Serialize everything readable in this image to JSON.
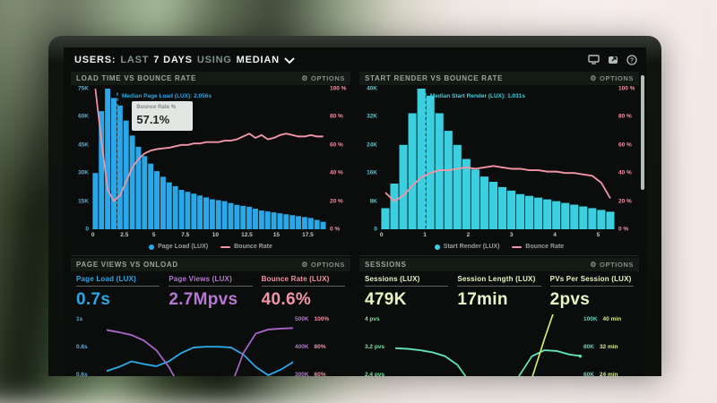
{
  "icons": {
    "gear": "⚙"
  },
  "labels": {
    "options": "OPTIONS"
  },
  "header": {
    "segments": [
      {
        "text": "USERS:",
        "style": "strong"
      },
      {
        "text": "LAST",
        "style": "muted"
      },
      {
        "text": "7 DAYS",
        "style": "strong"
      },
      {
        "text": "USING",
        "style": "muted"
      },
      {
        "text": "MEDIAN",
        "style": "strong"
      }
    ]
  },
  "chart_data": [
    {
      "type": "bar-line",
      "title": "LOAD TIME VS BOUNCE RATE",
      "x_ticks": [
        0,
        2.5,
        5,
        7.5,
        10,
        12.5,
        15,
        17.5
      ],
      "xlim": [
        0,
        19.2
      ],
      "y_left": {
        "ticks": [
          "75K",
          "60K",
          "45K",
          "30K",
          "15K",
          "0"
        ],
        "max_k": 75
      },
      "y_right": {
        "ticks": [
          "100 %",
          "80 %",
          "60 %",
          "40 %",
          "20 %",
          "0 %"
        ],
        "max": 100
      },
      "bars_k": [
        30,
        63,
        75,
        70,
        66,
        58,
        50,
        44,
        39,
        35,
        31,
        28,
        25,
        23,
        21,
        20,
        19,
        18,
        17,
        16,
        15.5,
        15,
        14,
        13,
        12.5,
        12,
        11,
        10,
        9.5,
        9,
        8.5,
        8,
        7.5,
        7,
        6.5,
        6,
        5,
        4
      ],
      "bounce_line_pct": [
        100,
        62,
        28,
        20,
        24,
        34,
        44,
        50,
        54,
        56,
        57,
        57.5,
        58,
        59,
        60,
        60,
        61,
        61,
        62,
        62,
        62,
        63,
        63,
        64,
        66,
        68,
        65,
        67,
        64,
        65,
        67,
        68,
        67,
        66,
        66,
        67,
        66,
        66
      ],
      "median_label": "Median Page Load (LUX): 2.056s",
      "median_x": 2.056,
      "tooltip": {
        "label": "Bounce Rate %",
        "value": "57.1%"
      },
      "legend": [
        {
          "label": "Page Load (LUX)",
          "marker": "dot"
        },
        {
          "label": "Bounce Rate",
          "marker": "line"
        }
      ],
      "colors": {
        "bars": "#2ba7e8",
        "line": "#f295a7",
        "axis_left": "#4fb0de",
        "axis_right": "#ef92a6"
      }
    },
    {
      "type": "bar-line",
      "title": "START RENDER VS BOUNCE RATE",
      "x_ticks": [
        0,
        1,
        2,
        3,
        4,
        5
      ],
      "xlim": [
        0,
        5.4
      ],
      "y_left": {
        "ticks": [
          "40K",
          "32K",
          "24K",
          "16K",
          "8K",
          "0"
        ],
        "max_k": 40
      },
      "y_right": {
        "ticks": [
          "100 %",
          "80 %",
          "60 %",
          "40 %",
          "20 %",
          "0 %"
        ],
        "max": 100
      },
      "bars_k": [
        6,
        13,
        24,
        33,
        40,
        38,
        33,
        28,
        24,
        20,
        17,
        15,
        13.5,
        12,
        11,
        10,
        9.5,
        9,
        8.5,
        8,
        7.5,
        7,
        6.5,
        6,
        5.5,
        5
      ],
      "bounce_line_pct": [
        26,
        20,
        24,
        31,
        37,
        40,
        42,
        42,
        43,
        44,
        43,
        44,
        45,
        44,
        43,
        43,
        42,
        42,
        41,
        41,
        40,
        40,
        39,
        38,
        33,
        22
      ],
      "median_label": "Median Start Render (LUX): 1.031s",
      "median_x": 1.031,
      "legend": [
        {
          "label": "Start Render (LUX)",
          "marker": "dot"
        },
        {
          "label": "Bounce Rate",
          "marker": "line"
        }
      ],
      "colors": {
        "bars": "#3bcfe0",
        "line": "#f295a7",
        "axis_left": "#4ccbd8",
        "axis_right": "#ef92a6"
      }
    },
    {
      "type": "sparklines",
      "title": "PAGE VIEWS VS ONLOAD",
      "metrics": [
        {
          "label": "Page Load (LUX)",
          "value": "0.7s",
          "color": "#2ba7e8"
        },
        {
          "label": "Page Views (LUX)",
          "value": "2.7Mpvs",
          "color": "#b678d2"
        },
        {
          "label": "Bounce Rate (LUX)",
          "value": "40.6%",
          "color": "#f295a7"
        }
      ],
      "left_ticks": [
        "1s",
        "0.8s",
        "0.6s"
      ],
      "left_tick_color": "#4fb0de",
      "right_ticks": [
        [
          "500K",
          "100%"
        ],
        [
          "400K",
          "80%"
        ],
        [
          "300K",
          "60%"
        ]
      ],
      "right_tick_colors": [
        "#b678d2",
        "#ef92a6"
      ],
      "series": [
        {
          "name": "Page Load (s)",
          "color": "#2ba7e8",
          "values": [
            0.63,
            0.66,
            0.7,
            0.68,
            0.665,
            0.7,
            0.76,
            0.8,
            0.805,
            0.805,
            0.8,
            0.75,
            0.66,
            0.6,
            0.64,
            0.695
          ],
          "top_value": 1.0,
          "value_per_row": 0.2
        },
        {
          "name": "Page Views (K)",
          "color": "#a965c8",
          "values": [
            463,
            455,
            445,
            425,
            390,
            330,
            250,
            185,
            170,
            185,
            260,
            380,
            450,
            465,
            468,
            470
          ],
          "top_value": 500,
          "value_per_row": 100
        }
      ]
    },
    {
      "type": "sparklines",
      "title": "SESSIONS",
      "metrics": [
        {
          "label": "Sessions (LUX)",
          "value": "479K",
          "color": "#e9f5c4"
        },
        {
          "label": "Session Length (LUX)",
          "value": "17min",
          "color": "#e9f5c4"
        },
        {
          "label": "PVs Per Session (LUX)",
          "value": "2pvs",
          "color": "#e9f5c4"
        }
      ],
      "left_ticks": [
        "4 pvs",
        "3.2 pvs",
        "2.4 pvs"
      ],
      "left_tick_color": "#79e5a5",
      "right_ticks": [
        [
          "100K",
          "40 min"
        ],
        [
          "80K",
          "32 min"
        ],
        [
          "60K",
          "24 min"
        ]
      ],
      "right_tick_colors": [
        "#5cd9c0",
        "#d9ec92"
      ],
      "series": [
        {
          "name": "PVs Per Session",
          "color": "#62e2b4",
          "end_dot": true,
          "values": [
            3.18,
            3.16,
            3.12,
            3.06,
            2.95,
            2.7,
            2.2,
            1.75,
            1.6,
            1.8,
            2.4,
            2.95,
            3.12,
            3.1,
            3.0,
            2.95
          ],
          "top_value": 4,
          "value_per_row": 0.8
        },
        {
          "name": "Sessions (K)",
          "color": "#d5ec73",
          "values": [
            38,
            38,
            39,
            39,
            40,
            40,
            41,
            42,
            43,
            45,
            48,
            58,
            86,
            112,
            135,
            150
          ],
          "top_value": 100,
          "value_per_row": 20
        }
      ]
    }
  ]
}
